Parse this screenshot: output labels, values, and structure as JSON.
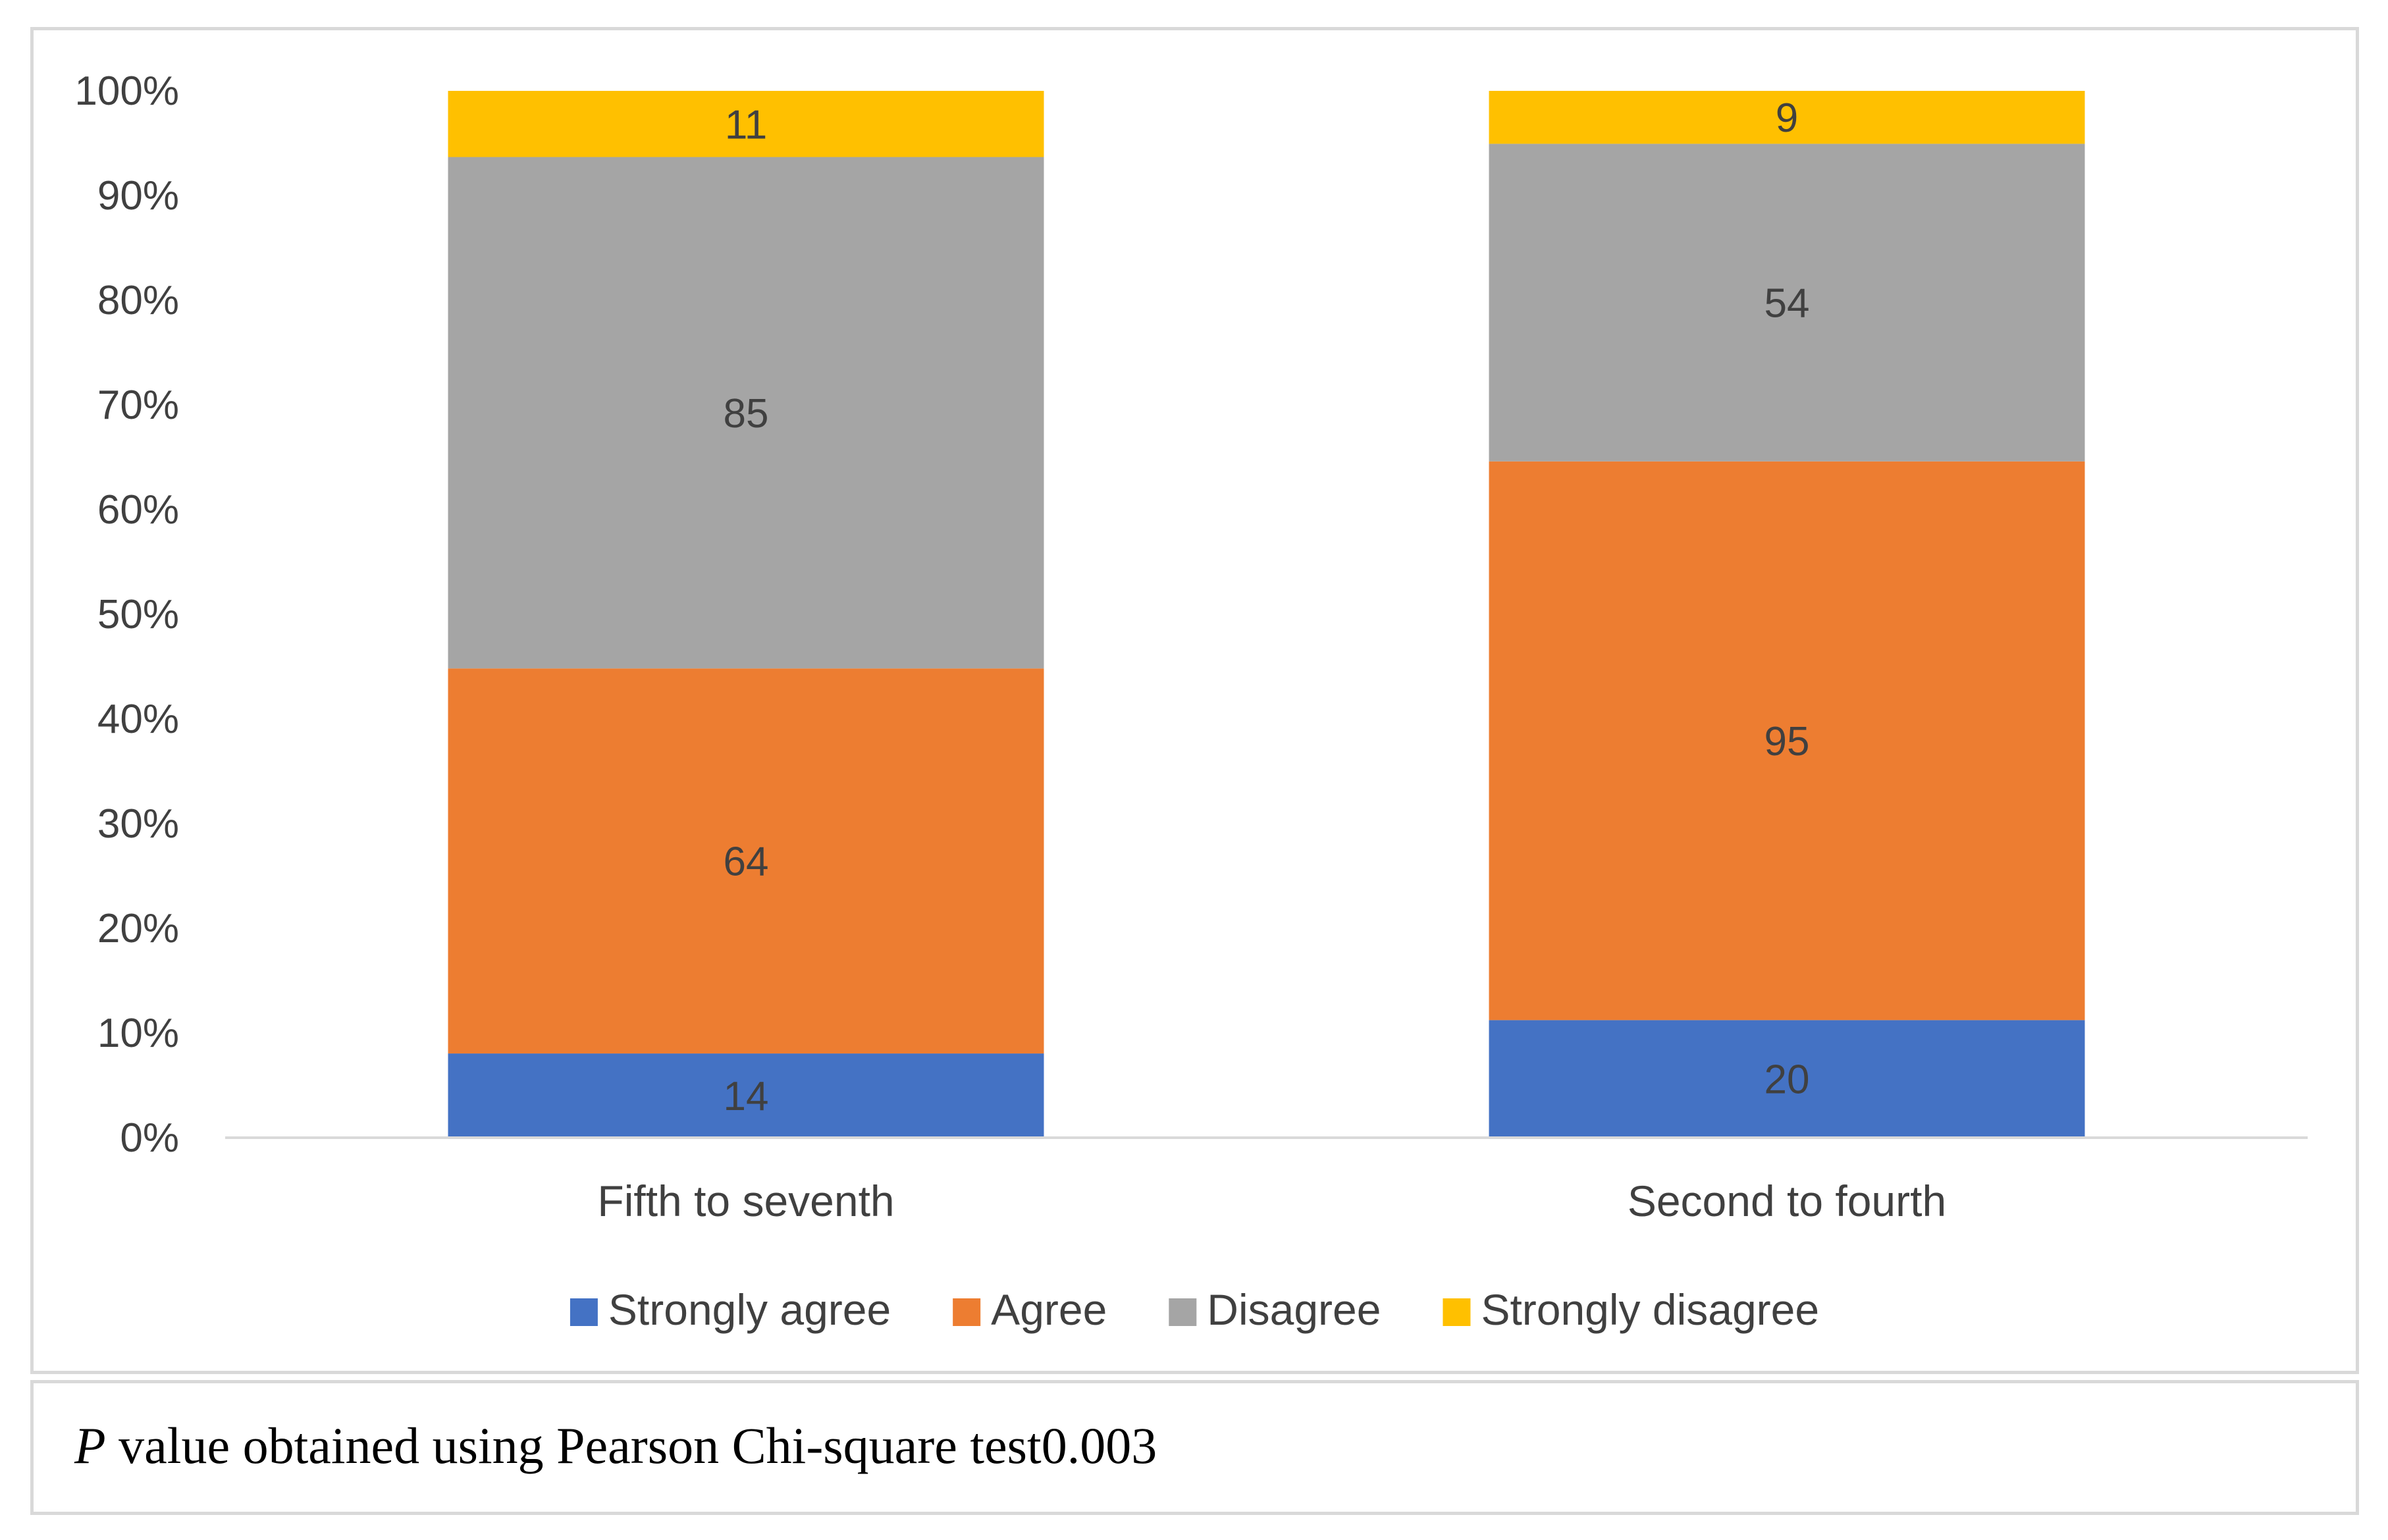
{
  "chart_data": {
    "type": "bar",
    "stacked": "percent",
    "categories": [
      "Fifth to seventh",
      "Second to fourth"
    ],
    "series": [
      {
        "name": "Strongly agree",
        "values": [
          14,
          20
        ],
        "color": "#4472C4"
      },
      {
        "name": "Agree",
        "values": [
          64,
          95
        ],
        "color": "#ED7D31"
      },
      {
        "name": "Disagree",
        "values": [
          85,
          54
        ],
        "color": "#A5A5A5"
      },
      {
        "name": "Strongly disagree",
        "values": [
          11,
          9
        ],
        "color": "#FFC000"
      }
    ],
    "y_ticks": [
      "0%",
      "10%",
      "20%",
      "30%",
      "40%",
      "50%",
      "60%",
      "70%",
      "80%",
      "90%",
      "100%"
    ],
    "ylim": [
      0,
      100
    ],
    "legend_position": "bottom",
    "grid": false
  },
  "note": {
    "p_label": "P",
    "text": " value obtained using Pearson Chi-square test",
    "value": "0.003"
  }
}
